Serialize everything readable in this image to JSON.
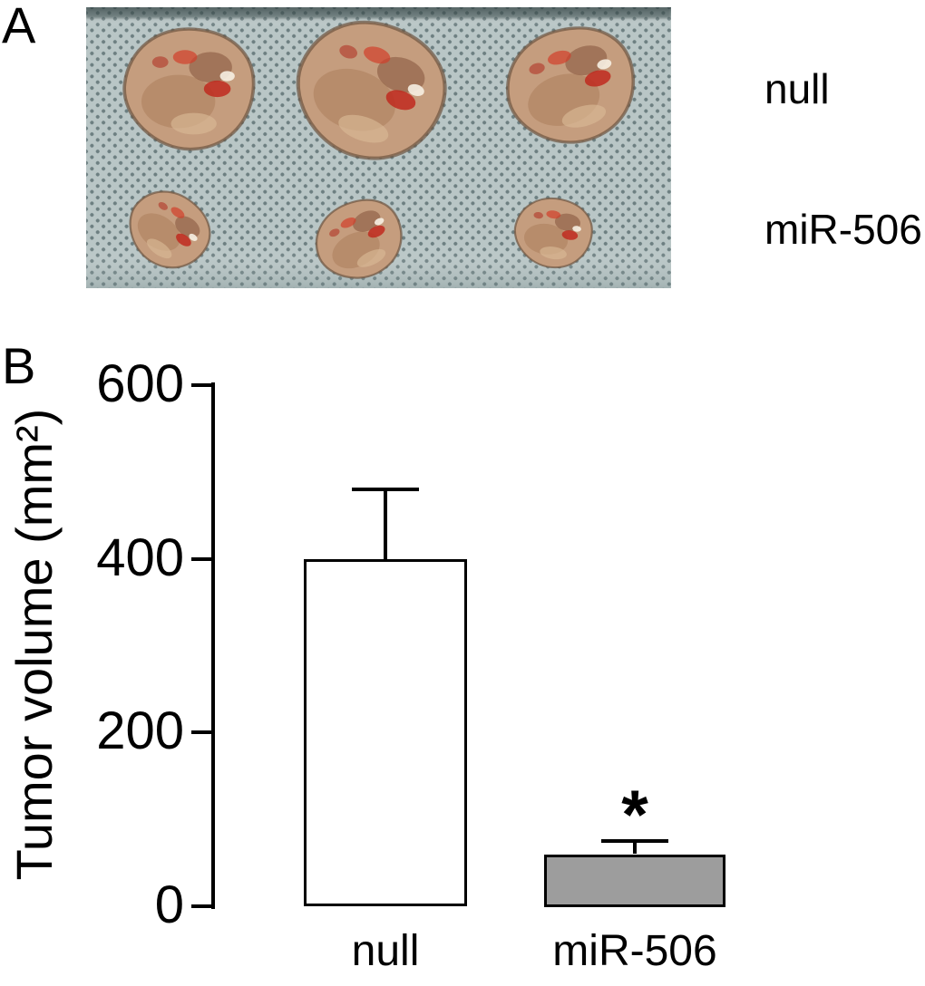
{
  "panels": {
    "a": {
      "label": "A",
      "rows": [
        {
          "label": "null",
          "tumor_count": 3
        },
        {
          "label": "miR-506",
          "tumor_count": 3
        }
      ]
    },
    "b": {
      "label": "B"
    }
  },
  "chart_data": {
    "type": "bar",
    "title": "",
    "categories": [
      "null",
      "miR-506"
    ],
    "values": [
      400,
      60
    ],
    "errors": [
      80,
      15
    ],
    "significance": [
      "",
      "*"
    ],
    "bar_colors": [
      "#ffffff",
      "#9d9d9d"
    ],
    "bar_border_color": "#000000",
    "ylabel": "Tumor volume (mm²)",
    "xlabel": "",
    "ylim": [
      0,
      600
    ],
    "yticks": [
      0,
      200,
      400,
      600
    ],
    "grid": false,
    "legend": "none"
  }
}
